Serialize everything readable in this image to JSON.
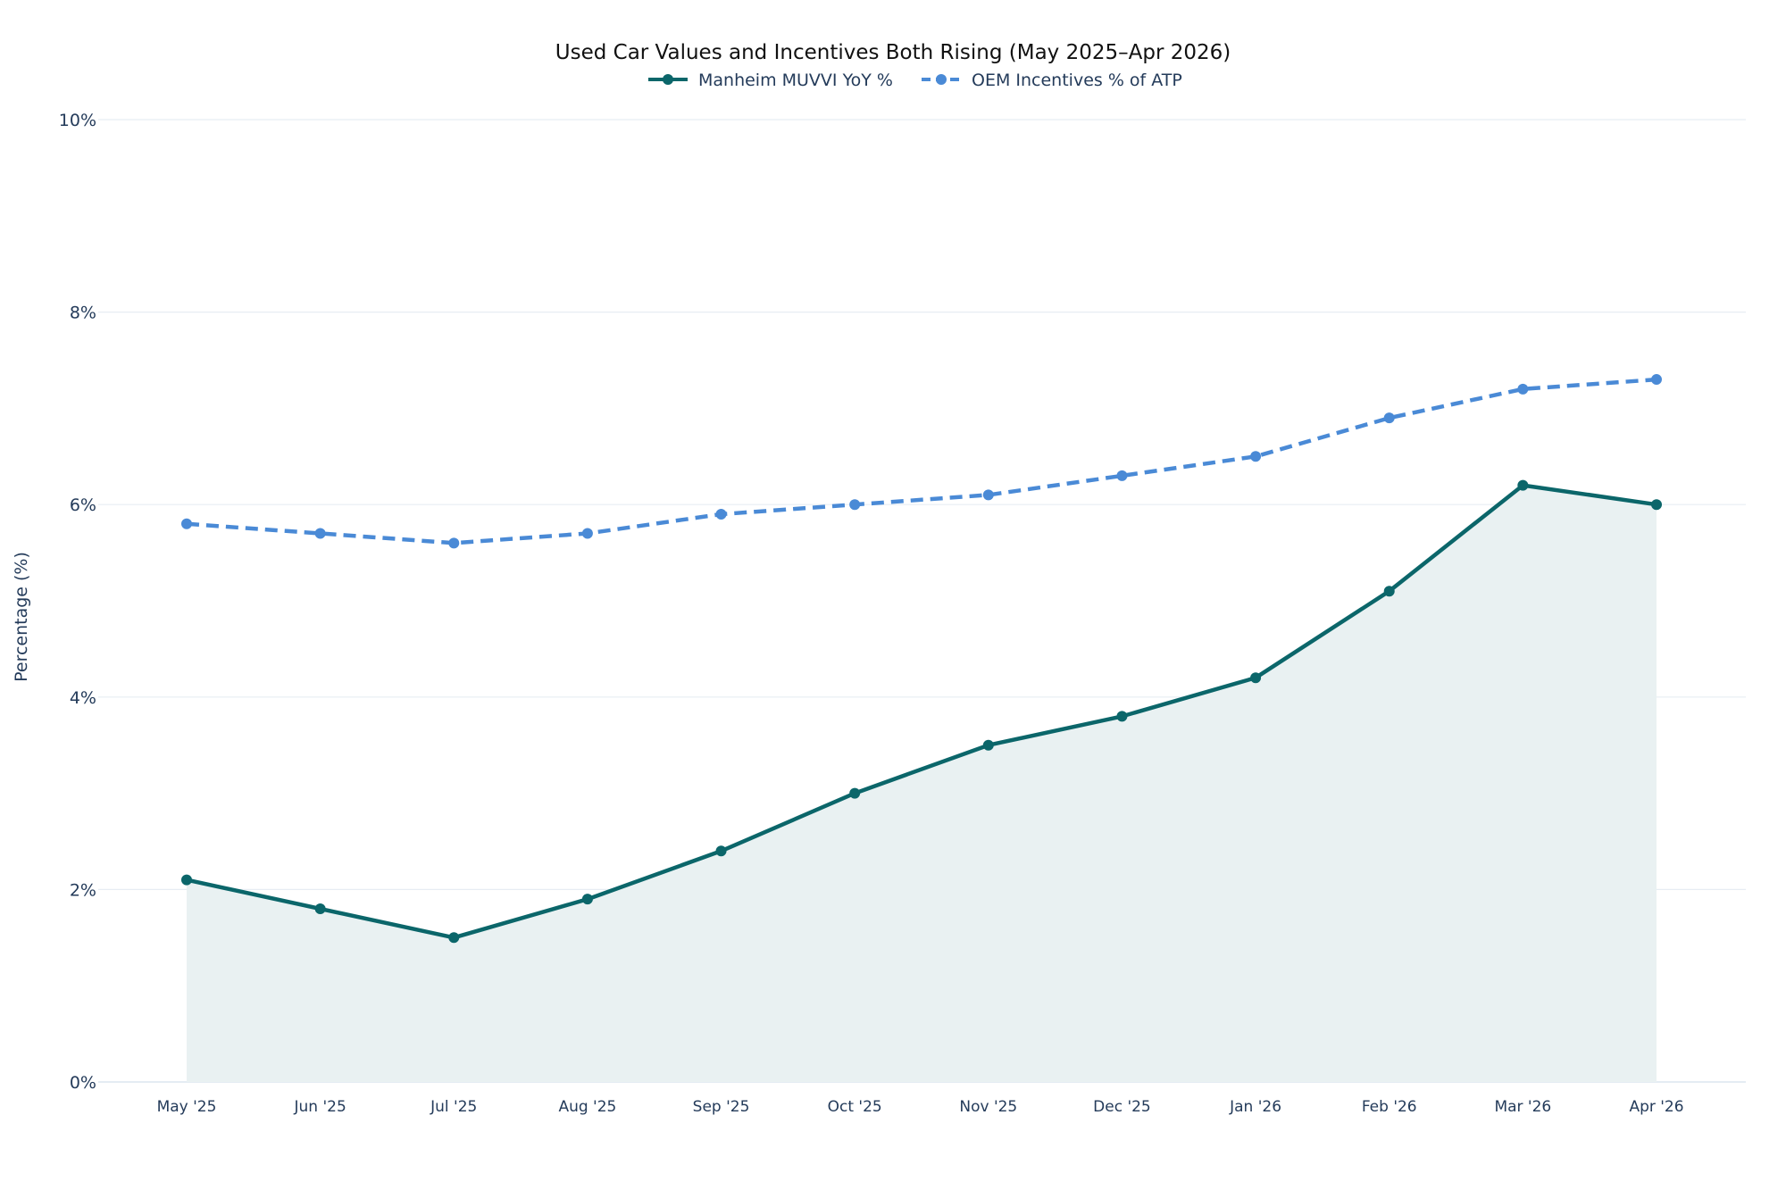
{
  "chart_data": {
    "type": "line",
    "title": "Used Car Values and Incentives Both Rising (May 2025–Apr 2026)",
    "xlabel": "",
    "ylabel": "Percentage (%)",
    "categories": [
      "May '25",
      "Jun '25",
      "Jul '25",
      "Aug '25",
      "Sep '25",
      "Oct '25",
      "Nov '25",
      "Dec '25",
      "Jan '26",
      "Feb '26",
      "Mar '26",
      "Apr '26"
    ],
    "ylim": [
      0,
      10
    ],
    "yticks": [
      0,
      2,
      4,
      6,
      8,
      10
    ],
    "ytick_labels": [
      "0%",
      "2%",
      "4%",
      "6%",
      "8%",
      "10%"
    ],
    "grid": true,
    "legend_position": "top-center",
    "series": [
      {
        "name": "Manheim MUVVI YoY %",
        "values": [
          2.1,
          1.8,
          1.5,
          1.9,
          2.4,
          3.0,
          3.5,
          3.8,
          4.2,
          5.1,
          6.2,
          6.0
        ],
        "color": "#0b666a",
        "style": "solid",
        "fill": "#e9f1f2"
      },
      {
        "name": "OEM Incentives % of ATP",
        "values": [
          5.8,
          5.7,
          5.6,
          5.7,
          5.9,
          6.0,
          6.1,
          6.3,
          6.5,
          6.9,
          7.2,
          7.3
        ],
        "color": "#4a8ad6",
        "style": "dashed"
      }
    ]
  }
}
